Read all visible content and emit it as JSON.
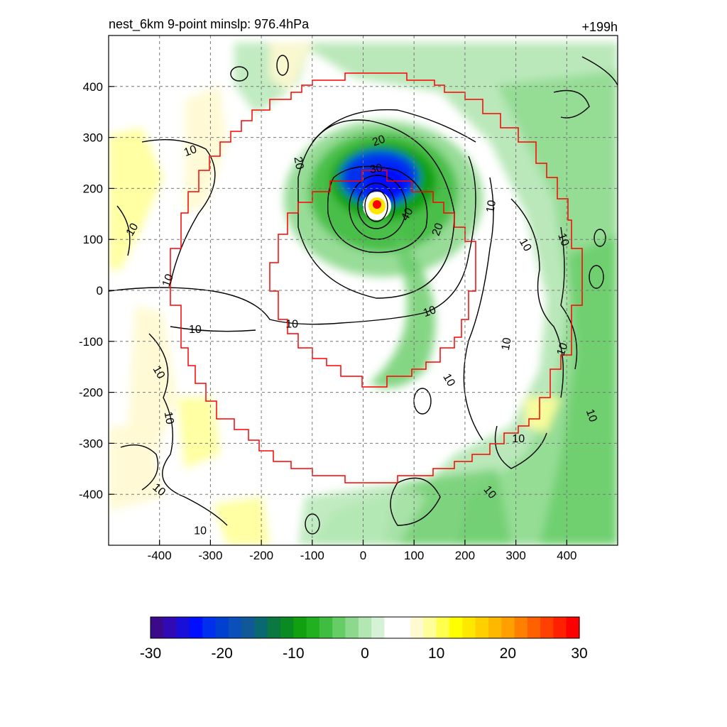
{
  "header": {
    "left_label": "nest_6km  9-point minslp: 976.4hPa",
    "right_label": "+199h"
  },
  "chart_data": {
    "type": "heatmap",
    "title": "nest_6km  9-point minslp: 976.4hPa",
    "time_label": "+199h",
    "xlabel": "",
    "ylabel": "",
    "xlim": [
      -500,
      500
    ],
    "ylim": [
      -500,
      500
    ],
    "x_ticks": [
      -400,
      -300,
      -200,
      -100,
      0,
      100,
      200,
      300,
      400
    ],
    "y_ticks": [
      400,
      300,
      200,
      100,
      0,
      -100,
      -200,
      -300,
      -400
    ],
    "grid": true,
    "colorbar": {
      "min": -30,
      "max": 30,
      "tick_values": [
        -30,
        -20,
        -10,
        0,
        10,
        20,
        30
      ],
      "tick_labels": [
        "-30",
        "-20",
        "-10",
        "0",
        "10",
        "20",
        "30"
      ],
      "colors": [
        "#3a0a8a",
        "#2f0ab5",
        "#1810d8",
        "#0010ff",
        "#0030ee",
        "#0040d0",
        "#0a50b8",
        "#105898",
        "#0a6870",
        "#0a7840",
        "#0a8a22",
        "#10a010",
        "#20b020",
        "#40bd40",
        "#66cc66",
        "#8cd88c",
        "#b2e6b2",
        "#d6f2d6",
        "#ffffff",
        "#ffffff",
        "#fffad0",
        "#ffff99",
        "#ffff4d",
        "#ffff00",
        "#ffe800",
        "#ffd000",
        "#ffb800",
        "#ffa000",
        "#ff8000",
        "#ff6000",
        "#ff4000",
        "#ff2000",
        "#ff0000"
      ]
    },
    "storm_center": {
      "x": 25,
      "y": 170
    },
    "center_marker_color": "#ff0000",
    "boundary_color": "#ff0000",
    "contour_labels": [
      {
        "text": "20",
        "x": 30,
        "y": 295,
        "angle": -20
      },
      {
        "text": "20",
        "x": -125,
        "y": 250,
        "angle": 80
      },
      {
        "text": "30",
        "x": 25,
        "y": 240,
        "angle": -10
      },
      {
        "text": "40",
        "x": 85,
        "y": 150,
        "angle": -60
      },
      {
        "text": "20",
        "x": 145,
        "y": 120,
        "angle": -70
      },
      {
        "text": "10",
        "x": -340,
        "y": 275,
        "angle": -20
      },
      {
        "text": "10",
        "x": -455,
        "y": 120,
        "angle": -60
      },
      {
        "text": "10",
        "x": -385,
        "y": 20,
        "angle": -70
      },
      {
        "text": "10",
        "x": -330,
        "y": -75,
        "angle": 0
      },
      {
        "text": "10",
        "x": -140,
        "y": -65,
        "angle": 0
      },
      {
        "text": "10",
        "x": 130,
        "y": -40,
        "angle": -20
      },
      {
        "text": "10",
        "x": 250,
        "y": 165,
        "angle": -80
      },
      {
        "text": "10",
        "x": 320,
        "y": 90,
        "angle": 60
      },
      {
        "text": "10",
        "x": 395,
        "y": 100,
        "angle": 70
      },
      {
        "text": "10",
        "x": 280,
        "y": -105,
        "angle": -80
      },
      {
        "text": "10",
        "x": 390,
        "y": -115,
        "angle": -70
      },
      {
        "text": "10",
        "x": -400,
        "y": -160,
        "angle": 60
      },
      {
        "text": "10",
        "x": 170,
        "y": -175,
        "angle": 60
      },
      {
        "text": "10",
        "x": 450,
        "y": -245,
        "angle": 70
      },
      {
        "text": "10",
        "x": -380,
        "y": -250,
        "angle": 80
      },
      {
        "text": "10",
        "x": 305,
        "y": -290,
        "angle": 0
      },
      {
        "text": "10",
        "x": -400,
        "y": -390,
        "angle": 40
      },
      {
        "text": "10",
        "x": 250,
        "y": -395,
        "angle": 50
      },
      {
        "text": "10",
        "x": -320,
        "y": -470,
        "angle": 0
      }
    ]
  }
}
